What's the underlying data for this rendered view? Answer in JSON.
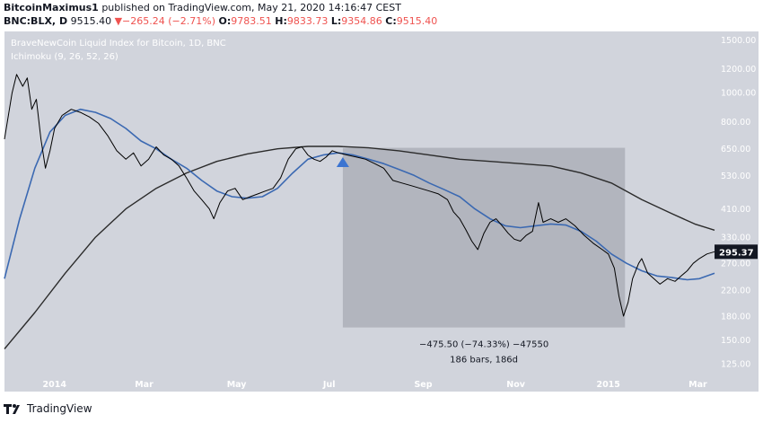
{
  "header": {
    "author": "BitcoinMaximus1",
    "published_text": "published on TradingView.com, May 21, 2020 14:16:47 CEST",
    "symbol": "BNC:BLX, D",
    "last": "9515.40",
    "change_arrow": "▼",
    "change": "−265.24 (−2.71%)",
    "o_label": "O:",
    "o_value": "9783.51",
    "h_label": "H:",
    "h_value": "9833.73",
    "l_label": "L:",
    "l_value": "9354.86",
    "c_label": "C:",
    "c_value": "9515.40"
  },
  "footer": {
    "brand": "TradingView"
  },
  "colors": {
    "plot_bg": "#d1d4dc",
    "price": "#000000",
    "ma_fast": "#3b69b2",
    "ma_slow": "#2b2b2b",
    "measure_box": "#b2b5be",
    "arrow": "#3b74d1",
    "axis_text": "#ffffff",
    "last_price_bg": "#131722"
  },
  "chart_data": {
    "type": "line",
    "title": "BraveNewCoin Liquid Index for Bitcoin, 1D, BNC",
    "indicator": "Ichimoku (9, 26, 52, 26)",
    "y_scale": "log",
    "ylim": [
      115,
      1600
    ],
    "y_ticks": [
      125.0,
      150.0,
      180.0,
      220.0,
      270.0,
      330.0,
      410.0,
      530.0,
      650.0,
      800.0,
      1000.0,
      1200.0,
      1500.0
    ],
    "y_tick_labels": [
      "125.00",
      "150.00",
      "180.00",
      "220.00",
      "270.00",
      "330.00",
      "410.00",
      "530.00",
      "650.00",
      "800.00",
      "1000.00",
      "1200.00",
      "1500.00"
    ],
    "x_range_days": [
      0,
      468
    ],
    "x_ticks": [
      {
        "label": "2014",
        "day": 33
      },
      {
        "label": "Mar",
        "day": 92
      },
      {
        "label": "May",
        "day": 153
      },
      {
        "label": "Jul",
        "day": 214
      },
      {
        "label": "Sep",
        "day": 276
      },
      {
        "label": "Nov",
        "day": 337
      },
      {
        "label": "2015",
        "day": 398
      },
      {
        "label": "Mar",
        "day": 457
      }
    ],
    "series": [
      {
        "name": "BLX price",
        "points": [
          [
            0,
            700
          ],
          [
            5,
            1000
          ],
          [
            8,
            1150
          ],
          [
            12,
            1050
          ],
          [
            15,
            1120
          ],
          [
            18,
            880
          ],
          [
            21,
            950
          ],
          [
            24,
            700
          ],
          [
            27,
            560
          ],
          [
            30,
            640
          ],
          [
            33,
            760
          ],
          [
            38,
            840
          ],
          [
            44,
            880
          ],
          [
            50,
            860
          ],
          [
            56,
            830
          ],
          [
            62,
            790
          ],
          [
            68,
            720
          ],
          [
            74,
            640
          ],
          [
            80,
            600
          ],
          [
            85,
            630
          ],
          [
            90,
            570
          ],
          [
            95,
            600
          ],
          [
            100,
            660
          ],
          [
            105,
            620
          ],
          [
            110,
            600
          ],
          [
            115,
            570
          ],
          [
            120,
            520
          ],
          [
            125,
            470
          ],
          [
            130,
            440
          ],
          [
            135,
            410
          ],
          [
            138,
            380
          ],
          [
            142,
            430
          ],
          [
            147,
            470
          ],
          [
            152,
            480
          ],
          [
            157,
            440
          ],
          [
            162,
            450
          ],
          [
            167,
            460
          ],
          [
            172,
            470
          ],
          [
            177,
            480
          ],
          [
            182,
            520
          ],
          [
            187,
            600
          ],
          [
            192,
            650
          ],
          [
            196,
            660
          ],
          [
            200,
            620
          ],
          [
            204,
            600
          ],
          [
            208,
            590
          ],
          [
            212,
            610
          ],
          [
            216,
            640
          ],
          [
            220,
            630
          ],
          [
            226,
            620
          ],
          [
            232,
            610
          ],
          [
            238,
            600
          ],
          [
            244,
            580
          ],
          [
            250,
            560
          ],
          [
            256,
            510
          ],
          [
            262,
            500
          ],
          [
            268,
            490
          ],
          [
            274,
            480
          ],
          [
            280,
            470
          ],
          [
            286,
            460
          ],
          [
            292,
            440
          ],
          [
            296,
            400
          ],
          [
            300,
            380
          ],
          [
            304,
            350
          ],
          [
            308,
            320
          ],
          [
            312,
            300
          ],
          [
            316,
            340
          ],
          [
            320,
            370
          ],
          [
            324,
            380
          ],
          [
            328,
            360
          ],
          [
            332,
            340
          ],
          [
            336,
            325
          ],
          [
            340,
            320
          ],
          [
            344,
            335
          ],
          [
            348,
            345
          ],
          [
            352,
            430
          ],
          [
            355,
            370
          ],
          [
            360,
            380
          ],
          [
            365,
            370
          ],
          [
            370,
            380
          ],
          [
            376,
            360
          ],
          [
            382,
            335
          ],
          [
            388,
            315
          ],
          [
            394,
            300
          ],
          [
            398,
            290
          ],
          [
            402,
            260
          ],
          [
            405,
            210
          ],
          [
            408,
            180
          ],
          [
            411,
            200
          ],
          [
            414,
            240
          ],
          [
            418,
            270
          ],
          [
            420,
            280
          ],
          [
            424,
            250
          ],
          [
            428,
            240
          ],
          [
            432,
            230
          ],
          [
            437,
            240
          ],
          [
            442,
            235
          ],
          [
            446,
            245
          ],
          [
            450,
            255
          ],
          [
            454,
            270
          ],
          [
            458,
            280
          ],
          [
            463,
            290
          ],
          [
            468,
            295
          ]
        ]
      },
      {
        "name": "Ichimoku baseline (fast)",
        "points": [
          [
            0,
            240
          ],
          [
            10,
            380
          ],
          [
            20,
            560
          ],
          [
            30,
            740
          ],
          [
            40,
            840
          ],
          [
            50,
            880
          ],
          [
            60,
            860
          ],
          [
            70,
            820
          ],
          [
            80,
            760
          ],
          [
            90,
            690
          ],
          [
            100,
            650
          ],
          [
            110,
            600
          ],
          [
            120,
            560
          ],
          [
            130,
            510
          ],
          [
            140,
            470
          ],
          [
            150,
            450
          ],
          [
            160,
            445
          ],
          [
            170,
            450
          ],
          [
            180,
            480
          ],
          [
            190,
            540
          ],
          [
            200,
            600
          ],
          [
            210,
            620
          ],
          [
            220,
            630
          ],
          [
            230,
            620
          ],
          [
            240,
            600
          ],
          [
            250,
            580
          ],
          [
            260,
            555
          ],
          [
            270,
            530
          ],
          [
            280,
            500
          ],
          [
            290,
            475
          ],
          [
            300,
            450
          ],
          [
            310,
            410
          ],
          [
            320,
            380
          ],
          [
            330,
            360
          ],
          [
            340,
            355
          ],
          [
            350,
            360
          ],
          [
            360,
            365
          ],
          [
            370,
            362
          ],
          [
            380,
            345
          ],
          [
            390,
            320
          ],
          [
            400,
            290
          ],
          [
            410,
            270
          ],
          [
            420,
            255
          ],
          [
            430,
            245
          ],
          [
            440,
            242
          ],
          [
            450,
            238
          ],
          [
            458,
            240
          ],
          [
            468,
            250
          ]
        ]
      },
      {
        "name": "Ichimoku lagging (slow)",
        "points": [
          [
            0,
            140
          ],
          [
            20,
            185
          ],
          [
            40,
            250
          ],
          [
            60,
            330
          ],
          [
            80,
            410
          ],
          [
            100,
            480
          ],
          [
            120,
            540
          ],
          [
            140,
            590
          ],
          [
            160,
            625
          ],
          [
            180,
            650
          ],
          [
            200,
            662
          ],
          [
            220,
            662
          ],
          [
            240,
            655
          ],
          [
            260,
            640
          ],
          [
            280,
            620
          ],
          [
            300,
            600
          ],
          [
            320,
            590
          ],
          [
            340,
            580
          ],
          [
            360,
            570
          ],
          [
            380,
            540
          ],
          [
            400,
            500
          ],
          [
            420,
            440
          ],
          [
            440,
            395
          ],
          [
            455,
            365
          ],
          [
            468,
            348
          ]
        ]
      }
    ],
    "last_price_label": "295.37",
    "measure": {
      "start_day": 223,
      "end_day": 409,
      "price_high": 655,
      "price_low": 165,
      "label_line1": "−475.50 (−74.33%) −47550",
      "label_line2": "186 bars, 186d"
    },
    "marker": {
      "type": "triangle-up",
      "day": 223,
      "price": 585
    }
  }
}
